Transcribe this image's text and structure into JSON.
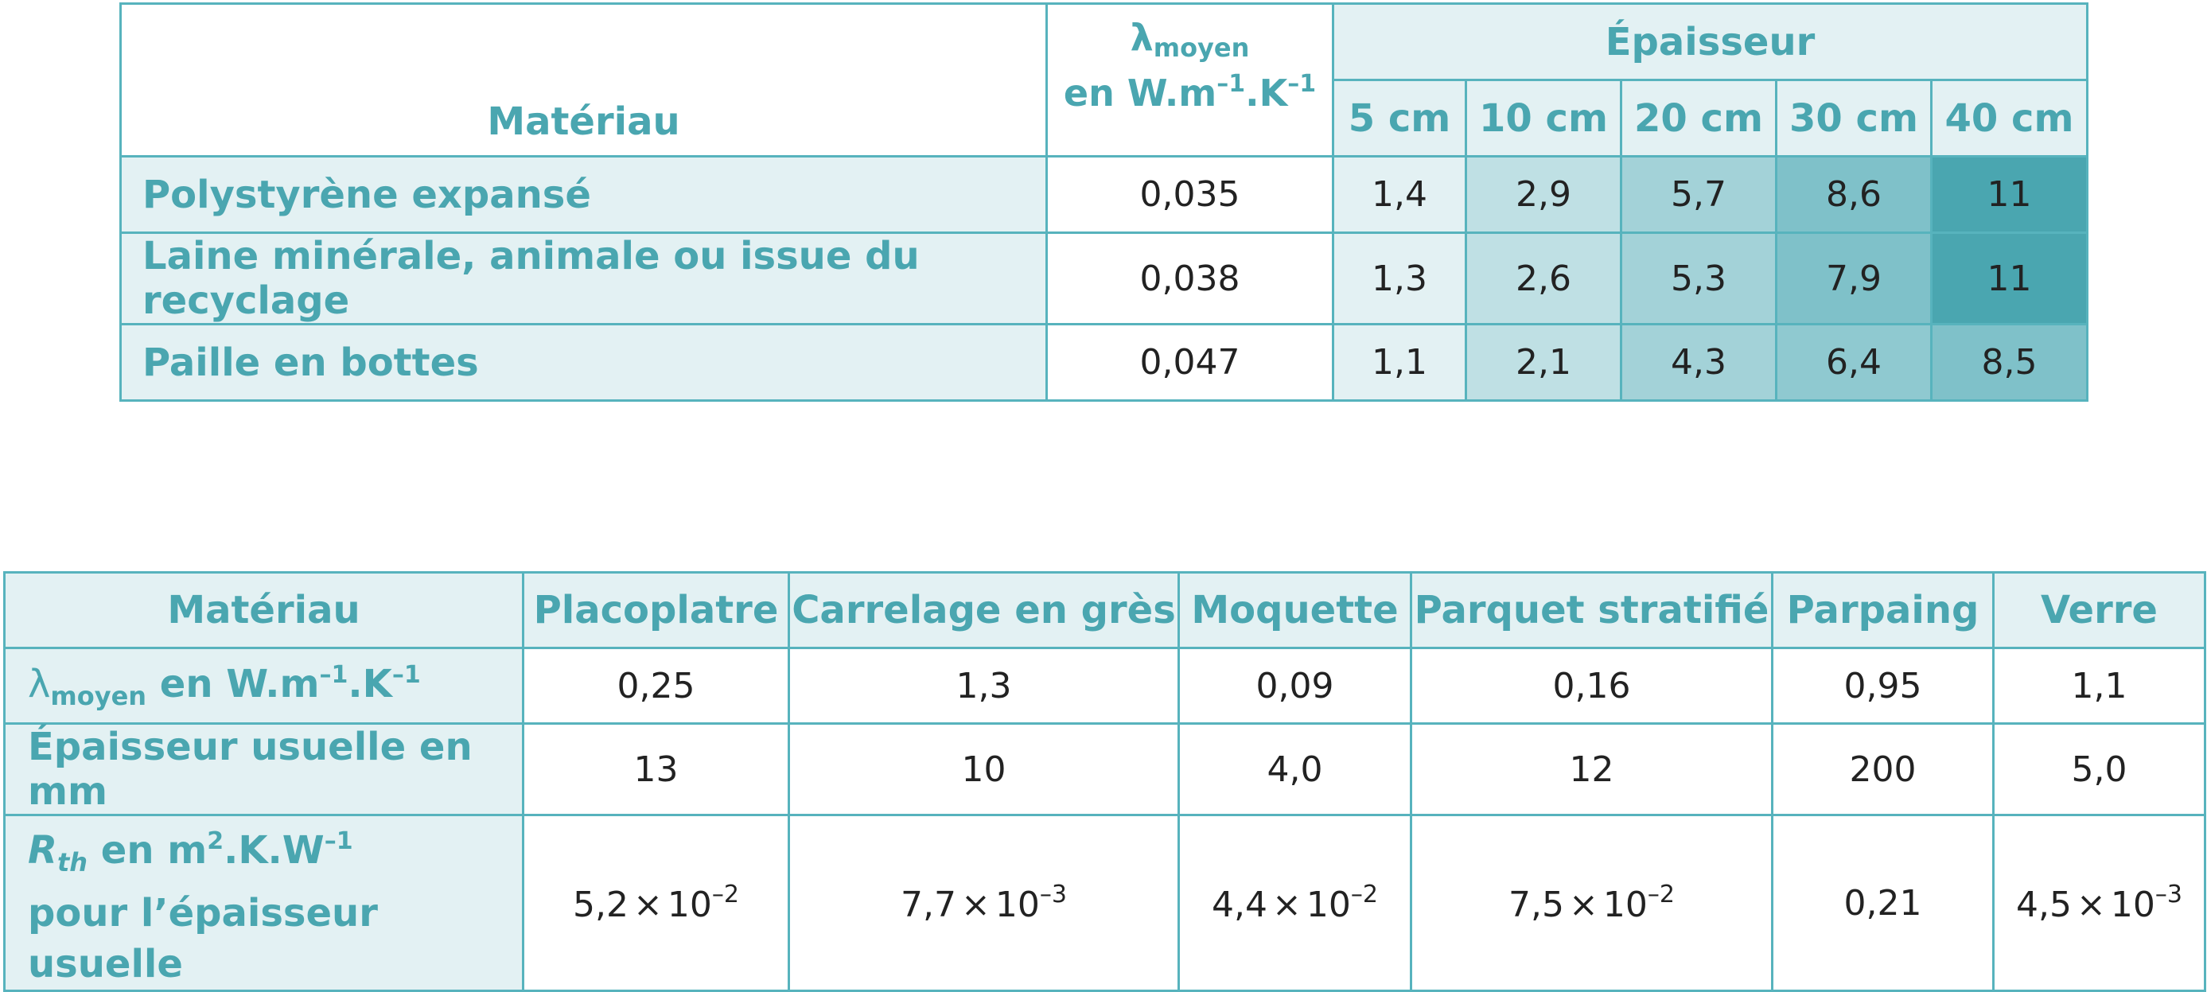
{
  "table1": {
    "material_header": "Matériau",
    "lambda_header": {
      "symbol": "λ",
      "sub": "moyen",
      "unit_base": "en W.m",
      "unit_exp1": "–1",
      "unit_mid": ".K",
      "unit_exp2": "–1"
    },
    "thickness_header": "Épaisseur",
    "thickness_columns": [
      "5 cm",
      "10 cm",
      "20 cm",
      "30 cm",
      "40 cm"
    ],
    "rows": [
      {
        "material": "Polystyrène expansé",
        "lambda": "0,035",
        "values": [
          "1,4",
          "2,9",
          "5,7",
          "8,6",
          "11"
        ]
      },
      {
        "material": "Laine minérale, animale ou issue du recyclage",
        "lambda": "0,038",
        "values": [
          "1,3",
          "2,6",
          "5,3",
          "7,9",
          "11"
        ]
      },
      {
        "material": "Paille en bottes",
        "lambda": "0,047",
        "values": [
          "1,1",
          "2,1",
          "4,3",
          "6,4",
          "8,5"
        ]
      }
    ],
    "heat_colors": {
      "1,4": "#e3f1f3",
      "2,9": "#bfe0e4",
      "5,7": "#a3d2d8",
      "8,6": "#7fc1c9",
      "11": "#4aa6b0",
      "1,3": "#e3f1f3",
      "2,6": "#bfe0e4",
      "5,3": "#a3d2d8",
      "7,9": "#7fc1c9",
      "1,1": "#e3f1f3",
      "2,1": "#bfe0e4",
      "4,3": "#a3d2d8",
      "6,4": "#8fc9d0",
      "8,5": "#7fc1c9"
    }
  },
  "table2": {
    "material_header": "Matériau",
    "columns": [
      "Placoplatre",
      "Carrelage en grès",
      "Moquette",
      "Parquet stratifié",
      "Parpaing",
      "Verre"
    ],
    "row_lambda": {
      "symbol": "λ",
      "sub": "moyen",
      "unit_base": " en W.m",
      "unit_exp1": "–1",
      "unit_mid": ".K",
      "unit_exp2": "–1",
      "values": [
        "0,25",
        "1,3",
        "0,09",
        "0,16",
        "0,95",
        "1,1"
      ]
    },
    "row_thickness": {
      "label": "Épaisseur usuelle en mm",
      "values": [
        "13",
        "10",
        "4,0",
        "12",
        "200",
        "5,0"
      ]
    },
    "row_rth": {
      "symbol": "R",
      "sub": "th",
      "unit_base": " en m",
      "unit_exp1": "2",
      "unit_mid": ".K.W",
      "unit_exp2": "–1",
      "line2": "pour l’épaisseur usuelle",
      "values": [
        {
          "mantissa": "5,2",
          "times": "×",
          "base": "10",
          "exp": "–2"
        },
        {
          "mantissa": "7,7",
          "times": "×",
          "base": "10",
          "exp": "–3"
        },
        {
          "mantissa": "4,4",
          "times": "×",
          "base": "10",
          "exp": "–2"
        },
        {
          "mantissa": "7,5",
          "times": "×",
          "base": "10",
          "exp": "–2"
        },
        {
          "plain": "0,21"
        },
        {
          "mantissa": "4,5",
          "times": "×",
          "base": "10",
          "exp": "–3"
        }
      ]
    }
  }
}
